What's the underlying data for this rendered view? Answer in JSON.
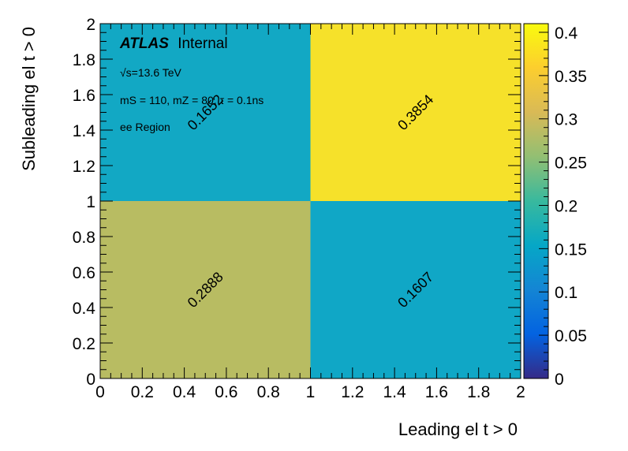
{
  "chart_data": {
    "type": "heatmap",
    "xlabel": "Leading el t > 0",
    "ylabel": "Subleading el t > 0",
    "xlim": [
      0,
      2
    ],
    "ylim": [
      0,
      2
    ],
    "x_ticks": [
      "0",
      "0.2",
      "0.4",
      "0.6",
      "0.8",
      "1",
      "1.2",
      "1.4",
      "1.6",
      "1.8",
      "2"
    ],
    "y_ticks": [
      "0",
      "0.2",
      "0.4",
      "0.6",
      "0.8",
      "1",
      "1.2",
      "1.4",
      "1.6",
      "1.8",
      "2"
    ],
    "x_bins": [
      [
        0,
        1
      ],
      [
        1,
        2
      ]
    ],
    "y_bins": [
      [
        0,
        1
      ],
      [
        1,
        2
      ]
    ],
    "cells": [
      {
        "x": [
          0,
          1
        ],
        "y": [
          0,
          1
        ],
        "value": 0.2888,
        "label": "0.2888",
        "color": "#b8bc62"
      },
      {
        "x": [
          1,
          2
        ],
        "y": [
          0,
          1
        ],
        "value": 0.1607,
        "label": "0.1607",
        "color": "#10a7c6"
      },
      {
        "x": [
          0,
          1
        ],
        "y": [
          1,
          2
        ],
        "value": 0.1652,
        "label": "0.1652",
        "color": "#12a8c4"
      },
      {
        "x": [
          1,
          2
        ],
        "y": [
          1,
          2
        ],
        "value": 0.3854,
        "label": "0.3854",
        "color": "#f6e12a"
      }
    ],
    "colorbar": {
      "range": [
        0,
        0.41
      ],
      "ticks": [
        "0",
        "0.05",
        "0.1",
        "0.15",
        "0.2",
        "0.25",
        "0.3",
        "0.35",
        "0.4"
      ],
      "palette": [
        "#352a87",
        "#0363e1",
        "#1485d4",
        "#06a7c6",
        "#38b99e",
        "#92bf73",
        "#d9ba56",
        "#fcce2e",
        "#f9fb0e"
      ]
    },
    "annotations": {
      "atlas": "ATLAS",
      "internal": "Internal",
      "energy": "√s=13.6 TeV",
      "params": "mS = 110, mZ = 80, τ = 0.1ns",
      "region": "ee Region"
    }
  }
}
